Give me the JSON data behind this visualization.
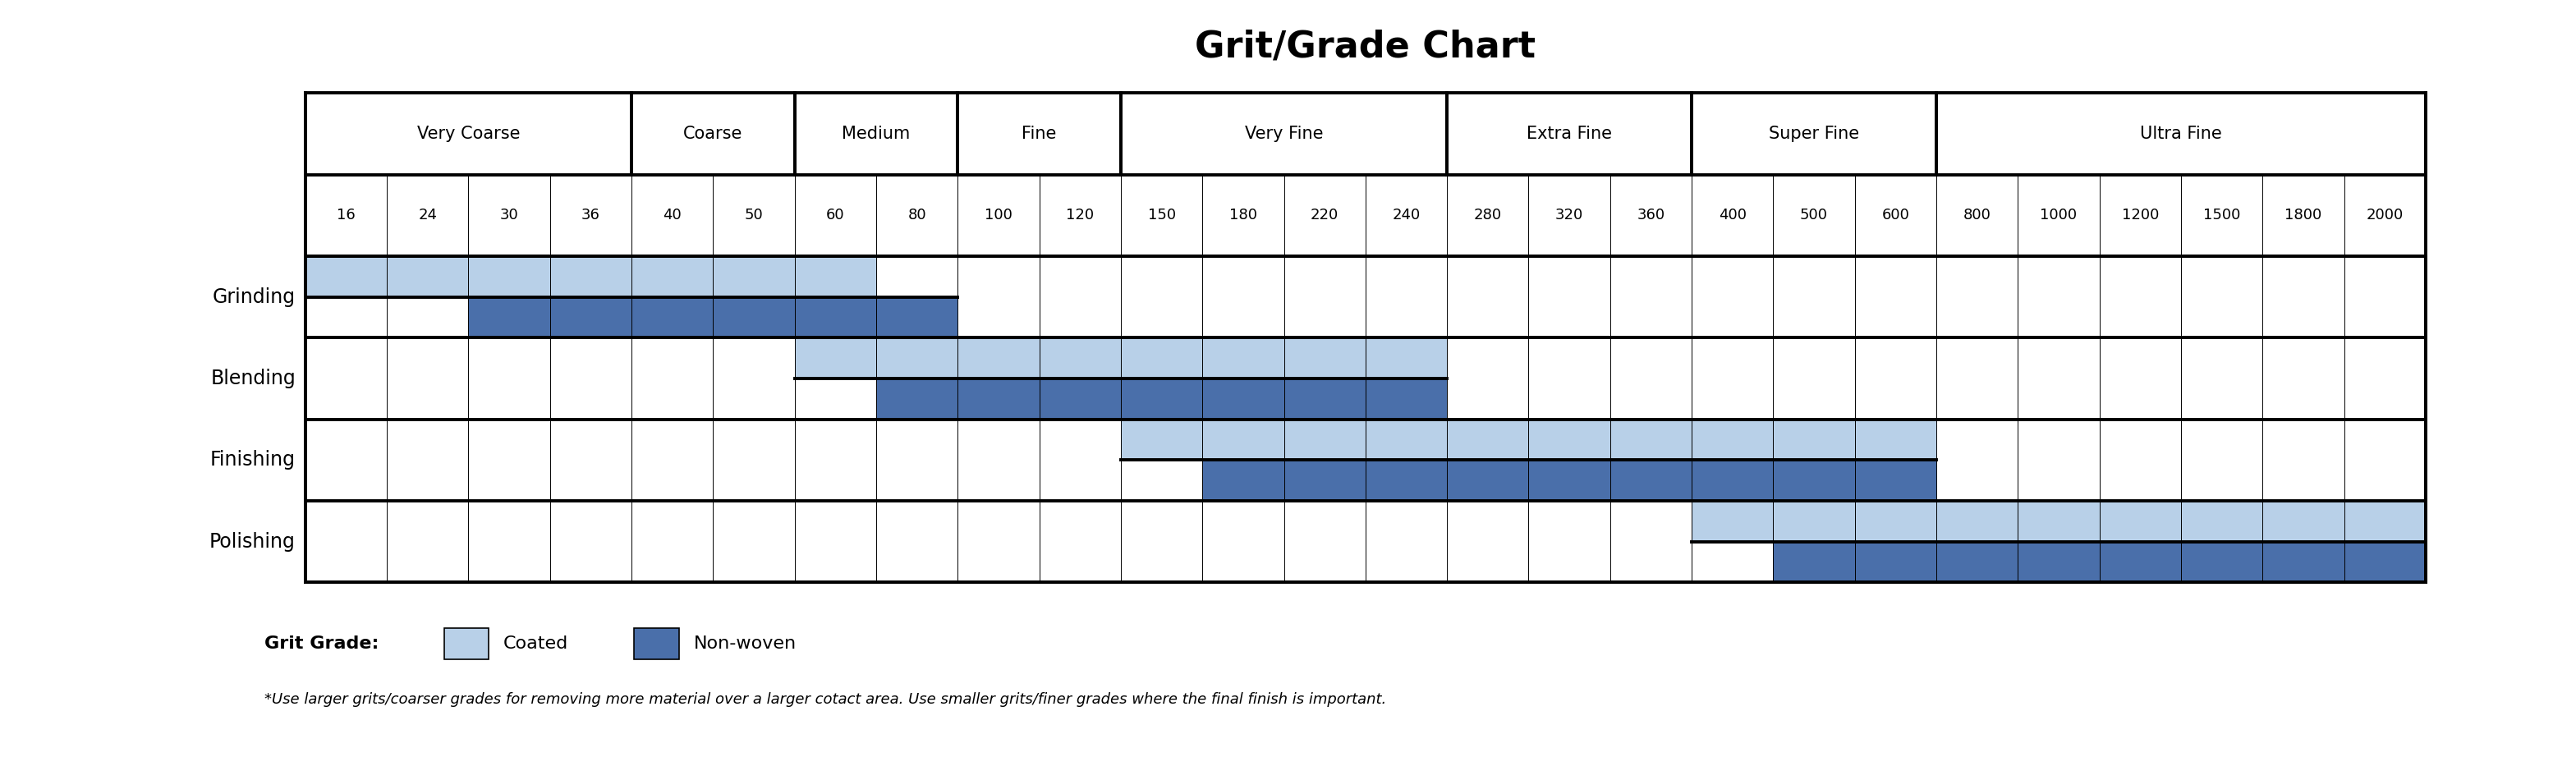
{
  "title": "Grit/Grade Chart",
  "title_fontsize": 32,
  "title_fontweight": "bold",
  "categories_ordered": [
    "Very Coarse",
    "Coarse",
    "Medium",
    "Fine",
    "Very Fine",
    "Extra Fine",
    "Super Fine",
    "Ultra Fine"
  ],
  "grit_values": [
    16,
    24,
    30,
    36,
    40,
    50,
    60,
    80,
    100,
    120,
    150,
    180,
    220,
    240,
    280,
    320,
    360,
    400,
    500,
    600,
    800,
    1000,
    1200,
    1500,
    1800,
    2000
  ],
  "category_spans": {
    "Very Coarse": [
      16,
      24,
      30,
      36
    ],
    "Coarse": [
      40,
      50
    ],
    "Medium": [
      60,
      80
    ],
    "Fine": [
      100,
      120
    ],
    "Very Fine": [
      150,
      180,
      220,
      240
    ],
    "Extra Fine": [
      280,
      320,
      360
    ],
    "Super Fine": [
      400,
      500,
      600
    ],
    "Ultra Fine": [
      800,
      1000,
      1200,
      1500,
      1800,
      2000
    ]
  },
  "rows": [
    "Grinding",
    "Blending",
    "Finishing",
    "Polishing"
  ],
  "coated_color": "#b8d0e8",
  "nonwoven_color": "#4a6faa",
  "bg_color": "#ffffff",
  "coated_ranges": {
    "Grinding": [
      16,
      24,
      30,
      36,
      40,
      50,
      60
    ],
    "Blending": [
      60,
      80,
      100,
      120,
      150,
      180,
      220,
      240
    ],
    "Finishing": [
      150,
      180,
      220,
      240,
      280,
      320,
      360,
      400,
      500,
      600
    ],
    "Polishing": [
      400,
      500,
      600,
      800,
      1000,
      1200,
      1500,
      1800,
      2000
    ]
  },
  "nonwoven_ranges": {
    "Grinding": [
      30,
      36,
      40,
      50,
      60,
      80
    ],
    "Blending": [
      80,
      100,
      120,
      150,
      180,
      220,
      240
    ],
    "Finishing": [
      180,
      220,
      240,
      280,
      320,
      360,
      400,
      500,
      600
    ],
    "Polishing": [
      500,
      600,
      800,
      1000,
      1200,
      1500,
      1800,
      2000
    ]
  },
  "footnote": "*Use larger grits/coarser grades for removing more material over a larger cotact area. Use smaller grits/finer grades where the final finish is important.",
  "legend_label_coated": "Coated",
  "legend_label_nonwoven": "Non-woven",
  "legend_prefix": "Grit Grade:"
}
